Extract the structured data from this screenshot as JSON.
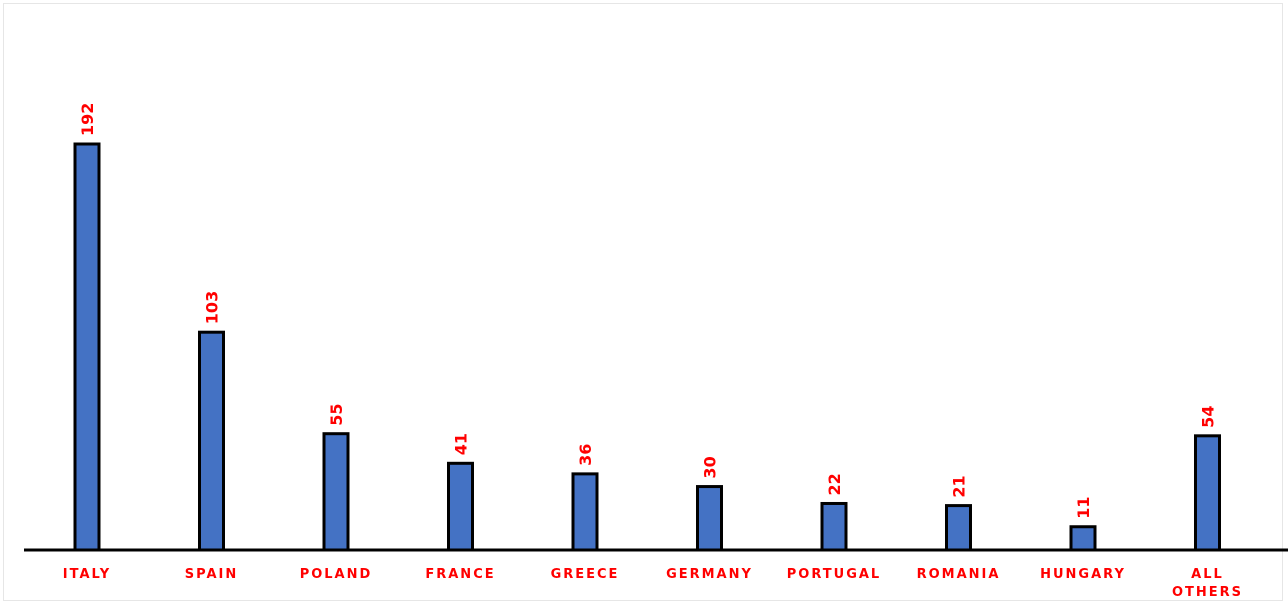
{
  "chart_data": {
    "type": "bar",
    "categories": [
      "ITALY",
      "SPAIN",
      "POLAND",
      "FRANCE",
      "GREECE",
      "GERMANY",
      "PORTUGAL",
      "ROMANIA",
      "HUNGARY",
      "ALL OTHERS"
    ],
    "values": [
      192,
      103,
      55,
      41,
      36,
      30,
      22,
      21,
      11,
      54
    ],
    "ylim": [
      0,
      192
    ],
    "grid": false,
    "legend": "none",
    "colors": {
      "bar_fill": "#4472c4",
      "bar_stroke": "#000000",
      "value_label": "#ff0000",
      "category_label": "#ff0000",
      "axis": "#000000"
    }
  }
}
